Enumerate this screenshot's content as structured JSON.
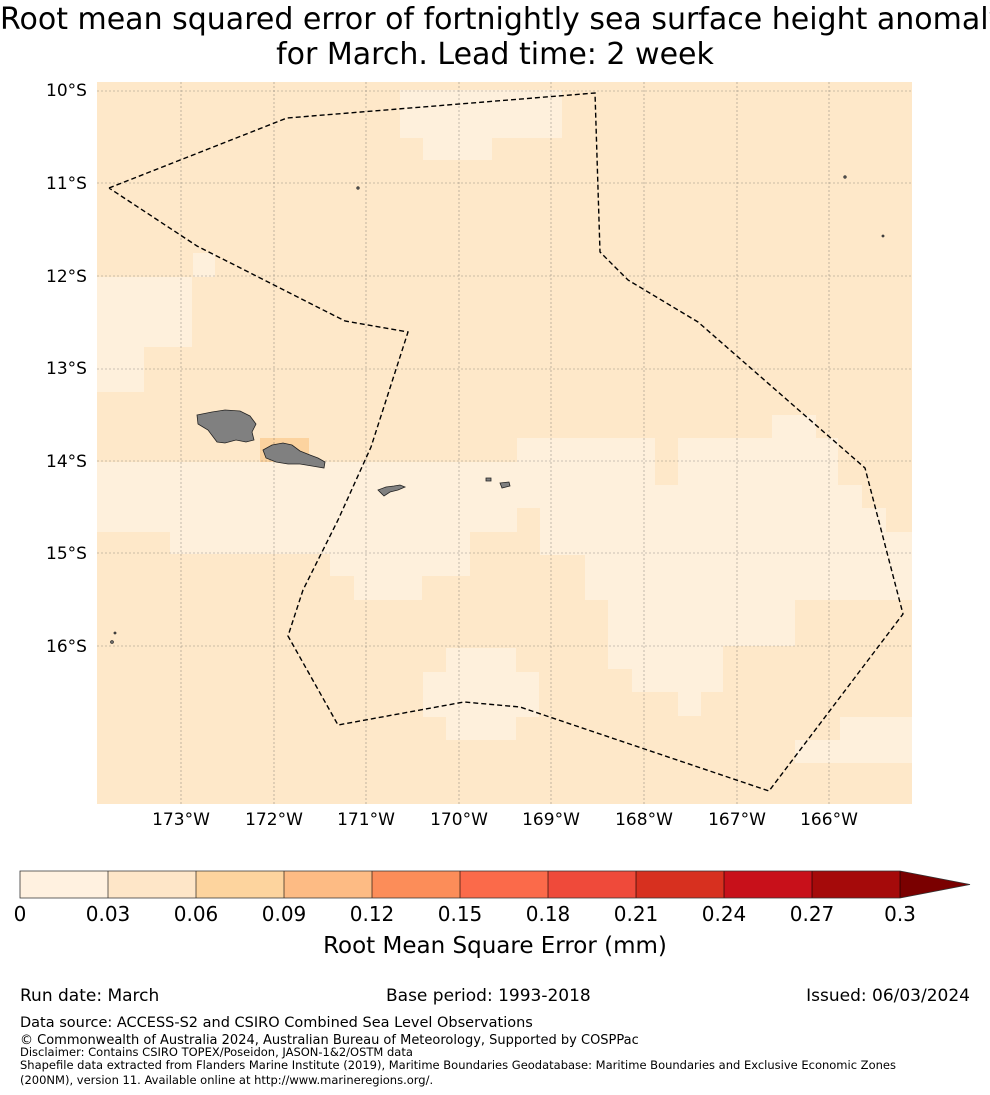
{
  "title": {
    "line1": "Root mean squared error of fortnightly sea surface height anomaly",
    "line2": "for March. Lead time: 2 week"
  },
  "map": {
    "lat_labels": [
      "10°S",
      "11°S",
      "12°S",
      "13°S",
      "14°S",
      "15°S",
      "16°S"
    ],
    "lon_labels": [
      "173°W",
      "172°W",
      "171°W",
      "170°W",
      "169°W",
      "168°W",
      "167°W",
      "166°W"
    ],
    "background_color": "#fee8c9",
    "lower_error_color": "#fef0dc",
    "higher_error_color": "#fcd39f",
    "land_color": "#808080",
    "grid": true,
    "eez_boundary": "dashed"
  },
  "colorbar": {
    "ticks": [
      "0",
      "0.03",
      "0.06",
      "0.09",
      "0.12",
      "0.15",
      "0.18",
      "0.21",
      "0.24",
      "0.27",
      "0.3"
    ],
    "colors": [
      "#fff1e0",
      "#fee6c8",
      "#fdd49e",
      "#fdbb84",
      "#fc8d59",
      "#fb6a4a",
      "#ef4a3a",
      "#d7301f",
      "#c8101a",
      "#a50a0a",
      "#7a0000"
    ],
    "label": "Root Mean Square Error (mm)"
  },
  "footer": {
    "run_date": "Run date: March",
    "base_period": "Base period: 1993-2018",
    "issued": "Issued: 06/03/2024",
    "data_source": "Data source: ACCESS-S2 and CSIRO Combined Sea Level Observations",
    "copyright": "© Commonwealth of Australia 2024, Australian Bureau of Meteorology, Supported by COSPPac",
    "disclaimer": "Disclaimer: Contains CSIRO TOPEX/Poseidon, JASON-1&2/OSTM data",
    "shapefile_line1": "Shapefile data extracted from Flanders Marine Institute (2019), Maritime Boundaries Geodatabase: Maritime Boundaries and Exclusive Economic Zones",
    "shapefile_line2": "(200NM), version 11. Available online at http://www.marineregions.org/."
  }
}
